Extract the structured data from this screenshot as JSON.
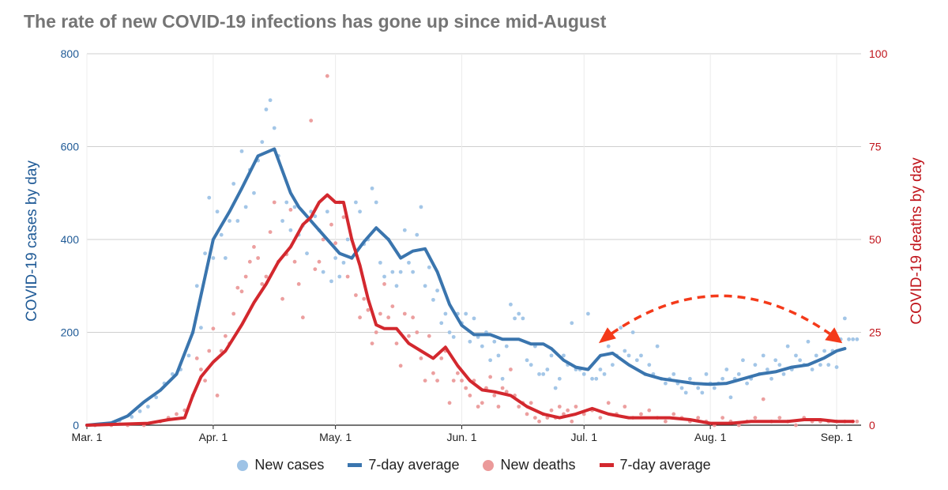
{
  "chart_data": {
    "type": "line",
    "title": "The rate of new COVID-19 infections has gone up since mid-August",
    "x_ticks": [
      "Mar. 1",
      "Apr. 1",
      "May. 1",
      "Jun. 1",
      "Jul. 1",
      "Aug. 1",
      "Sep. 1"
    ],
    "x_range_days": [
      0,
      190
    ],
    "y_left": {
      "label": "COVID-19 cases by day",
      "range": [
        0,
        800
      ],
      "ticks": [
        0,
        200,
        400,
        600,
        800
      ],
      "color": "#1f5a96"
    },
    "y_right": {
      "label": "COVID-19 deaths by day",
      "range": [
        0,
        100
      ],
      "ticks": [
        0,
        25,
        50,
        75,
        100
      ],
      "color": "#c0141b"
    },
    "grid": true,
    "legend_position": "bottom",
    "colors": {
      "cases_dot": "#9ec3e6",
      "cases_line": "#3a75ae",
      "deaths_dot": "#eb9a9a",
      "deaths_line": "#d3282e",
      "annotation": "#f43a1a"
    },
    "legend": [
      {
        "label": "New cases",
        "kind": "dot",
        "color": "#9ec3e6"
      },
      {
        "label": "7-day average",
        "kind": "line",
        "color": "#3a75ae"
      },
      {
        "label": "New deaths",
        "kind": "dot",
        "color": "#eb9a9a"
      },
      {
        "label": "7-day average",
        "kind": "line",
        "color": "#d3282e"
      }
    ],
    "annotation": {
      "type": "curved-dashed-arrow",
      "from_day": 126,
      "from_cases": 180,
      "to_day": 185,
      "to_cases": 180,
      "peak_cases": 270
    },
    "series": [
      {
        "name": "7-day average",
        "axis": "left",
        "x": [
          0,
          6,
          10,
          14,
          18,
          22,
          26,
          29,
          31,
          33,
          35,
          38,
          42,
          46,
          50,
          52,
          54,
          56,
          59,
          62,
          65,
          68,
          71,
          74,
          77,
          80,
          83,
          86,
          89,
          92,
          95,
          99,
          102,
          106,
          109,
          112,
          114,
          117,
          120,
          123,
          126,
          129,
          133,
          137,
          141,
          145,
          149,
          153,
          157,
          161,
          165,
          169,
          173,
          177,
          181,
          184,
          186
        ],
        "y": [
          0,
          5,
          20,
          50,
          75,
          110,
          200,
          320,
          400,
          430,
          460,
          510,
          580,
          595,
          500,
          470,
          450,
          430,
          400,
          370,
          360,
          395,
          425,
          400,
          360,
          375,
          380,
          330,
          260,
          215,
          195,
          195,
          185,
          185,
          175,
          175,
          165,
          140,
          125,
          120,
          150,
          155,
          130,
          110,
          100,
          95,
          90,
          88,
          90,
          100,
          110,
          115,
          125,
          130,
          145,
          160,
          165
        ]
      },
      {
        "name": "7-day average",
        "axis": "right",
        "x": [
          0,
          15,
          20,
          24,
          26,
          28,
          31,
          34,
          38,
          41,
          44,
          47,
          50,
          53,
          55,
          57,
          59,
          61,
          63,
          65,
          67,
          69,
          71,
          73,
          76,
          79,
          82,
          85,
          88,
          91,
          94,
          97,
          100,
          104,
          108,
          112,
          116,
          120,
          124,
          128,
          133,
          138,
          143,
          148,
          153,
          158,
          163,
          168,
          172,
          176,
          180,
          184,
          188
        ],
        "y": [
          0,
          0.5,
          1.5,
          2,
          8,
          13,
          17,
          20,
          27,
          33,
          38,
          44,
          48,
          54,
          56,
          60,
          62,
          60,
          60,
          50,
          43,
          34,
          27,
          26,
          26,
          22,
          20,
          18,
          21,
          16,
          12,
          9.5,
          9,
          8,
          5,
          3,
          2,
          3,
          4.5,
          3,
          2,
          2,
          2,
          1.5,
          0.5,
          0.5,
          1,
          1,
          1,
          1.5,
          1.5,
          1,
          1
        ]
      }
    ],
    "scatter": {
      "cases": {
        "x": [
          2,
          5,
          8,
          11,
          13,
          15,
          17,
          19,
          21,
          23,
          25,
          26,
          27,
          28,
          29,
          30,
          31,
          32,
          33,
          34,
          35,
          36,
          37,
          38,
          39,
          40,
          41,
          42,
          43,
          44,
          45,
          46,
          47,
          48,
          49,
          50,
          51,
          52,
          53,
          54,
          55,
          56,
          57,
          58,
          59,
          60,
          61,
          62,
          63,
          64,
          65,
          66,
          67,
          68,
          69,
          70,
          71,
          72,
          73,
          74,
          75,
          76,
          77,
          78,
          79,
          80,
          81,
          82,
          83,
          84,
          85,
          86,
          87,
          88,
          89,
          90,
          91,
          92,
          93,
          94,
          95,
          96,
          97,
          98,
          99,
          100,
          101,
          102,
          103,
          104,
          105,
          106,
          107,
          108,
          109,
          110,
          111,
          112,
          113,
          114,
          115,
          116,
          117,
          118,
          119,
          120,
          121,
          122,
          123,
          124,
          125,
          126,
          127,
          128,
          129,
          130,
          131,
          132,
          133,
          134,
          135,
          136,
          137,
          138,
          139,
          140,
          141,
          142,
          143,
          144,
          145,
          146,
          147,
          148,
          149,
          150,
          151,
          152,
          153,
          154,
          155,
          156,
          157,
          158,
          159,
          160,
          161,
          162,
          163,
          164,
          165,
          166,
          167,
          168,
          169,
          170,
          171,
          172,
          173,
          174,
          175,
          176,
          177,
          178,
          179,
          180,
          181,
          182,
          183,
          184,
          185,
          186,
          187,
          188,
          189
        ],
        "y": [
          0,
          3,
          10,
          18,
          30,
          40,
          60,
          90,
          110,
          120,
          150,
          200,
          300,
          210,
          370,
          490,
          360,
          460,
          410,
          360,
          440,
          520,
          440,
          590,
          470,
          550,
          500,
          570,
          610,
          680,
          700,
          640,
          580,
          440,
          480,
          420,
          470,
          410,
          430,
          370,
          460,
          450,
          420,
          330,
          460,
          310,
          360,
          320,
          350,
          400,
          400,
          480,
          460,
          390,
          400,
          510,
          480,
          350,
          320,
          400,
          330,
          300,
          330,
          420,
          350,
          330,
          410,
          470,
          300,
          340,
          270,
          290,
          220,
          240,
          200,
          190,
          240,
          220,
          240,
          180,
          230,
          190,
          170,
          200,
          140,
          180,
          150,
          100,
          170,
          260,
          230,
          240,
          230,
          140,
          130,
          170,
          110,
          110,
          120,
          150,
          80,
          100,
          150,
          130,
          220,
          120,
          120,
          110,
          240,
          100,
          100,
          120,
          110,
          170,
          130,
          150,
          210,
          160,
          150,
          200,
          140,
          150,
          110,
          130,
          110,
          170,
          100,
          90,
          100,
          110,
          90,
          80,
          70,
          100,
          90,
          80,
          70,
          110,
          90,
          80,
          90,
          100,
          120,
          60,
          100,
          110,
          140,
          90,
          100,
          130,
          110,
          150,
          120,
          100,
          140,
          130,
          110,
          170,
          120,
          150,
          140,
          130,
          180,
          120,
          150,
          130,
          160,
          130,
          160,
          125,
          185,
          230,
          185,
          185,
          185
        ],
        "color": "#9ec3e6"
      },
      "deaths": {
        "x": [
          2,
          6,
          10,
          14,
          18,
          20,
          22,
          24,
          26,
          27,
          28,
          29,
          30,
          31,
          32,
          33,
          34,
          35,
          36,
          37,
          38,
          39,
          40,
          41,
          42,
          43,
          44,
          45,
          46,
          47,
          48,
          49,
          50,
          51,
          52,
          53,
          54,
          55,
          56,
          57,
          58,
          59,
          60,
          61,
          62,
          63,
          64,
          65,
          66,
          67,
          68,
          69,
          70,
          71,
          72,
          73,
          74,
          75,
          76,
          77,
          78,
          79,
          80,
          81,
          82,
          83,
          84,
          85,
          86,
          87,
          88,
          89,
          90,
          91,
          92,
          93,
          94,
          95,
          96,
          97,
          98,
          99,
          100,
          101,
          102,
          103,
          104,
          105,
          106,
          107,
          108,
          109,
          110,
          111,
          112,
          113,
          114,
          115,
          116,
          117,
          118,
          119,
          120,
          122,
          124,
          126,
          128,
          130,
          132,
          134,
          136,
          138,
          140,
          142,
          144,
          146,
          148,
          150,
          152,
          154,
          156,
          158,
          160,
          162,
          164,
          166,
          168,
          170,
          172,
          174,
          176,
          178,
          180,
          182,
          184,
          186,
          188,
          189
        ],
        "y": [
          0,
          0,
          0,
          0,
          1,
          2,
          3,
          4,
          8,
          18,
          15,
          12,
          20,
          26,
          8,
          20,
          24,
          22,
          30,
          37,
          36,
          40,
          44,
          48,
          45,
          38,
          40,
          52,
          60,
          44,
          34,
          46,
          58,
          44,
          38,
          29,
          55,
          82,
          42,
          44,
          50,
          94,
          54,
          49,
          60,
          56,
          40,
          45,
          35,
          29,
          34,
          31,
          22,
          25,
          30,
          38,
          29,
          32,
          22,
          16,
          30,
          24,
          29,
          25,
          18,
          12,
          24,
          14,
          12,
          18,
          20,
          6,
          12,
          14,
          12,
          10,
          8,
          12,
          5,
          6,
          10,
          13,
          8,
          5,
          10,
          9,
          15,
          8,
          5,
          6,
          3,
          6,
          2,
          1,
          3,
          2,
          4,
          2,
          5,
          3,
          4,
          1,
          5,
          3,
          4,
          2,
          6,
          3,
          5,
          2,
          3,
          4,
          2,
          1,
          3,
          2,
          1,
          2,
          1,
          0,
          2,
          1,
          0,
          1,
          2,
          7,
          1,
          2,
          1,
          0,
          2,
          1,
          1,
          1,
          1,
          1,
          1,
          1
        ],
        "color": "#eb9a9a"
      }
    }
  }
}
